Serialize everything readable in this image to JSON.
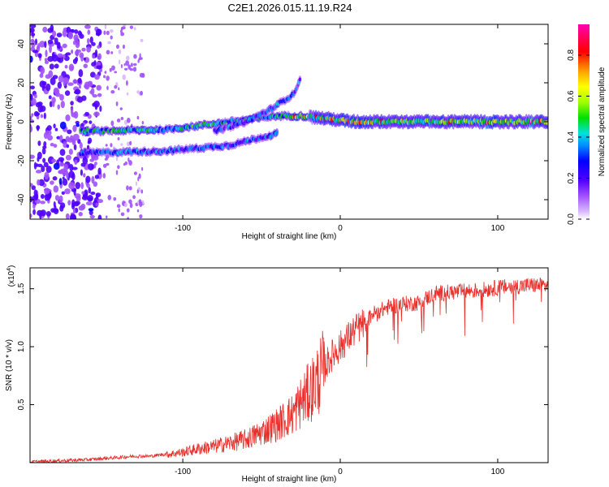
{
  "title": "C2E1.2026.015.11.19.R24",
  "colors": {
    "line": "#e8302c",
    "axis": "#000000",
    "colormap": [
      "#d8b8ff",
      "#a050ff",
      "#5000ff",
      "#0000ff",
      "#0090ff",
      "#00e0e0",
      "#00e000",
      "#a0ff00",
      "#ffff00",
      "#ffa000",
      "#ff0000",
      "#ff00b0"
    ]
  },
  "chart_data": [
    {
      "type": "heatmap",
      "title": "C2E1.2026.015.11.19.R24",
      "xlabel": "Height of straight line (km)",
      "ylabel": "Frequency (Hz)",
      "xlim": [
        -197,
        132
      ],
      "ylim": [
        -50,
        50
      ],
      "xticks": [
        -100,
        0,
        100
      ],
      "yticks": [
        -40,
        -20,
        0,
        20,
        40
      ],
      "colorbar": {
        "label": "Normalized spectral amplitude",
        "range": [
          0.0,
          0.95
        ],
        "ticks": [
          0.0,
          0.2,
          0.4,
          0.6,
          0.8
        ]
      },
      "features": [
        {
          "name": "main tone",
          "x": [
            -165,
            -110,
            -70,
            -40,
            -25,
            10,
            132
          ],
          "freq_hz": [
            -5,
            -4,
            0,
            3,
            3,
            0,
            0
          ]
        },
        {
          "name": "lower branch",
          "x": [
            -165,
            -110,
            -70,
            -40
          ],
          "freq_hz": [
            -16,
            -15,
            -12,
            -6
          ]
        },
        {
          "name": "rising branch",
          "x": [
            -80,
            -60,
            -45,
            -30,
            -25
          ],
          "freq_hz": [
            -5,
            0,
            6,
            14,
            22
          ]
        }
      ]
    },
    {
      "type": "line",
      "xlabel": "Height of straight line (km)",
      "ylabel": "SNR (10 * v/v)",
      "y_scale_label": "(x10",
      "y_scale_exponent": "4",
      "xlim": [
        -197,
        132
      ],
      "ylim": [
        0,
        1.68
      ],
      "xticks": [
        -100,
        0,
        100
      ],
      "yticks": [
        0.5,
        1.0,
        1.5
      ],
      "series": [
        {
          "name": "SNR",
          "x": [
            -197,
            -180,
            -160,
            -150,
            -140,
            -130,
            -120,
            -110,
            -100,
            -90,
            -80,
            -70,
            -60,
            -50,
            -40,
            -30,
            -25,
            -20,
            -15,
            -10,
            -5,
            0,
            5,
            10,
            15,
            20,
            30,
            40,
            50,
            60,
            70,
            80,
            90,
            100,
            110,
            120,
            132
          ],
          "y": [
            0.0,
            0.01,
            0.02,
            0.03,
            0.04,
            0.05,
            0.05,
            0.07,
            0.09,
            0.12,
            0.14,
            0.17,
            0.2,
            0.26,
            0.33,
            0.42,
            0.52,
            0.6,
            0.7,
            0.82,
            0.93,
            1.0,
            1.08,
            1.15,
            1.2,
            1.3,
            1.36,
            1.39,
            1.4,
            1.48,
            1.49,
            1.5,
            1.51,
            1.53,
            1.54,
            1.55,
            1.55
          ]
        }
      ]
    }
  ]
}
